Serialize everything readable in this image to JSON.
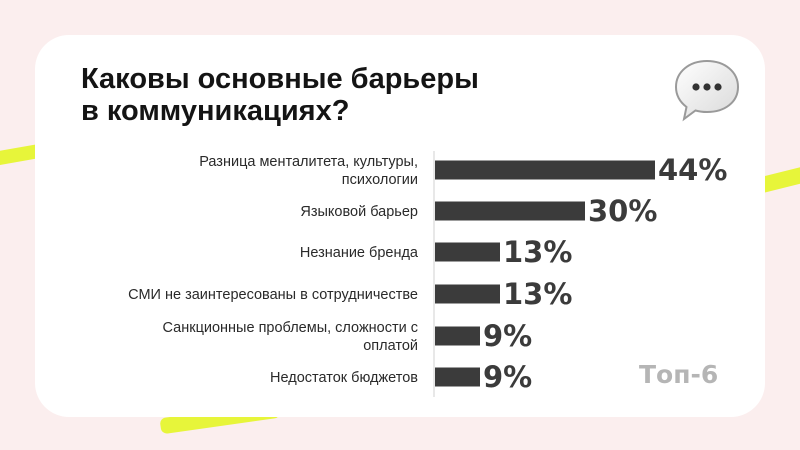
{
  "header": {
    "title_lines": [
      "Каковы основные барьеры",
      "в коммуникациях?"
    ],
    "badge": "Топ-6"
  },
  "icons": {
    "bubble": "speech-bubble-icon"
  },
  "colors": {
    "bar": "#3b3b3b",
    "background": "#fbeeee",
    "card": "#ffffff",
    "accent": "#e7f53a"
  },
  "chart_data": {
    "type": "bar",
    "orientation": "horizontal",
    "title": "Каковы основные барьеры в коммуникациях?",
    "xlim": [
      0,
      44
    ],
    "grid": false,
    "categories": [
      [
        "Разница менталитета, культуры,",
        "психологии"
      ],
      [
        "Языковой барьер"
      ],
      [
        "Незнание бренда"
      ],
      [
        "СМИ не заинтересованы в сотрудничестве"
      ],
      [
        "Санкционные проблемы, сложности с",
        "оплатой"
      ],
      [
        "Недостаток бюджетов"
      ]
    ],
    "values": [
      44,
      30,
      13,
      13,
      9,
      9
    ],
    "value_labels": [
      "44%",
      "30%",
      "13%",
      "13%",
      "9%",
      "9%"
    ]
  }
}
